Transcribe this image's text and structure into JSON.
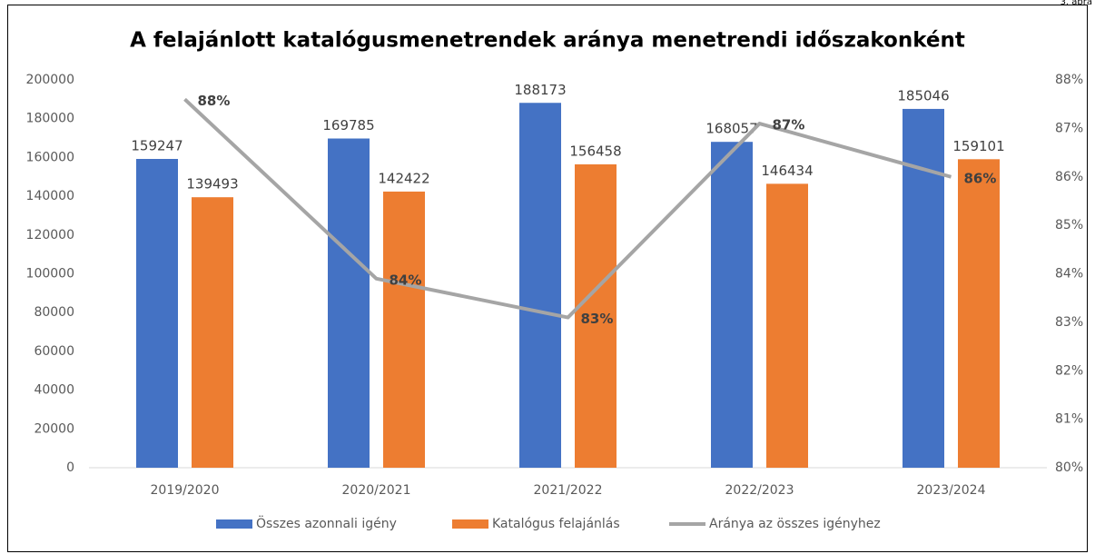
{
  "note": "3. ábra",
  "chart_data": {
    "type": "bar_line",
    "title": "A felajánlott katalógusmenetrendek aránya menetrendi időszakonként",
    "categories": [
      "2019/2020",
      "2020/2021",
      "2021/2022",
      "2022/2023",
      "2023/2024"
    ],
    "series": [
      {
        "name": "Összes azonnali igény",
        "color": "#4472c4",
        "type": "bar",
        "values": [
          159247,
          169785,
          188173,
          168057,
          185046
        ]
      },
      {
        "name": "Katalógus felajánlás",
        "color": "#ed7d31",
        "type": "bar",
        "values": [
          139493,
          142422,
          156458,
          146434,
          159101
        ]
      },
      {
        "name": "Aránya az összes igényhez",
        "color": "#a5a5a5",
        "type": "line",
        "axis": "y2",
        "values": [
          87.6,
          83.9,
          83.1,
          87.1,
          86.0
        ],
        "value_labels": [
          "88%",
          "84%",
          "83%",
          "87%",
          "86%"
        ]
      }
    ],
    "ylim": [
      0,
      200000
    ],
    "yticks": [
      0,
      20000,
      40000,
      60000,
      80000,
      100000,
      120000,
      140000,
      160000,
      180000,
      200000
    ],
    "y2lim": [
      80,
      88
    ],
    "y2ticks": [
      {
        "value": 80,
        "label": "80%"
      },
      {
        "value": 81,
        "label": "81%"
      },
      {
        "value": 82,
        "label": "82%"
      },
      {
        "value": 83,
        "label": "83%"
      },
      {
        "value": 84,
        "label": "84%"
      },
      {
        "value": 85,
        "label": "85%"
      },
      {
        "value": 86,
        "label": "86%"
      },
      {
        "value": 87,
        "label": "87%"
      },
      {
        "value": 88,
        "label": "88%"
      }
    ],
    "legend": "bottom"
  }
}
